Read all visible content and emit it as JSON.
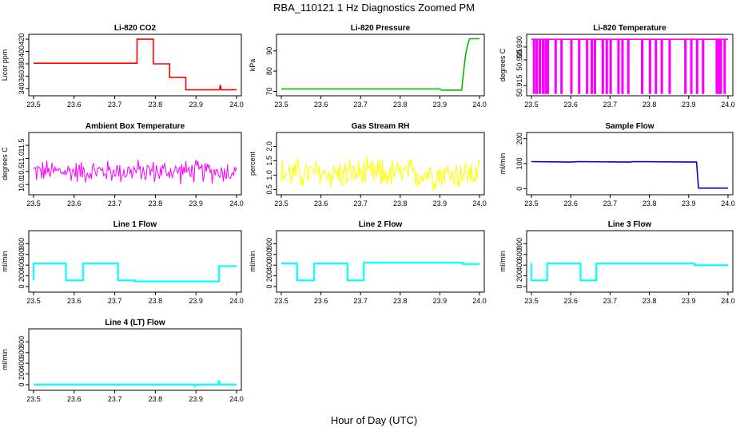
{
  "figure": {
    "title": "RBA_110121  1 Hz Diagnostics Zoomed PM",
    "xlabel": "Hour of Day (UTC)"
  },
  "chart_data": [
    {
      "type": "line",
      "title": "Li-820 CO2",
      "ylabel": "Licor ppm",
      "color": "#ff0000",
      "xlim": [
        23.5,
        24.0
      ],
      "ylim": [
        332,
        424
      ],
      "xticks": [
        "23.5",
        "23.6",
        "23.7",
        "23.8",
        "23.9",
        "24.0"
      ],
      "yticks": [
        340,
        360,
        380,
        400,
        420
      ],
      "x": [
        23.5,
        23.755,
        23.755,
        23.795,
        23.795,
        23.835,
        23.835,
        23.875,
        23.875,
        23.958,
        23.96,
        23.962,
        24.0
      ],
      "y": [
        381,
        381,
        420,
        420,
        380,
        380,
        358,
        358,
        338,
        338,
        346,
        338,
        338
      ]
    },
    {
      "type": "line",
      "title": "Li-820 Pressure",
      "ylabel": "kPa",
      "color": "#00bb00",
      "xlim": [
        23.5,
        24.0
      ],
      "ylim": [
        69,
        97
      ],
      "xticks": [
        "23.5",
        "23.6",
        "23.7",
        "23.8",
        "23.9",
        "24.0"
      ],
      "yticks": [
        70,
        80,
        90
      ],
      "x": [
        23.5,
        23.9,
        23.905,
        23.955,
        23.96,
        23.965,
        23.97,
        23.975,
        24.0
      ],
      "y": [
        71.2,
        71.2,
        70.6,
        70.6,
        80,
        88,
        93,
        96,
        96
      ]
    },
    {
      "type": "line",
      "title": "Li-820 Temperature",
      "ylabel": "degrees C",
      "color": "#ff00ff",
      "xlim": [
        23.5,
        24.0
      ],
      "ylim": [
        50.912,
        50.934
      ],
      "xticks": [
        "23.5",
        "23.6",
        "23.7",
        "23.8",
        "23.9",
        "24.0"
      ],
      "yticks": [
        "50.915",
        "50.925",
        "50.930"
      ],
      "high_value": 50.933,
      "low_value": 50.912,
      "low_at": [
        23.505,
        23.512,
        23.52,
        23.528,
        23.535,
        23.54,
        23.56,
        23.575,
        23.6,
        23.62,
        23.64,
        23.652,
        23.66,
        23.68,
        23.69,
        23.7,
        23.72,
        23.73,
        23.745,
        23.78,
        23.8,
        23.815,
        23.83,
        23.85,
        23.89,
        23.905,
        23.92,
        23.935,
        23.97,
        23.975,
        23.98,
        23.99
      ]
    },
    {
      "type": "line",
      "title": "Ambient Box Temperature",
      "ylabel": "degrees C",
      "color": "#ff00ff",
      "xlim": [
        23.5,
        24.0
      ],
      "ylim": [
        9.7,
        11.9
      ],
      "xticks": [
        "23.5",
        "23.6",
        "23.7",
        "23.8",
        "23.9",
        "24.0"
      ],
      "yticks": [
        "10.0",
        "10.5",
        "11.0",
        "11.5"
      ],
      "noise": {
        "base": 10.5,
        "amp": 0.45,
        "count": 200
      }
    },
    {
      "type": "line",
      "title": "Gas Stream RH",
      "ylabel": "percent",
      "color": "#ffff00",
      "xlim": [
        23.5,
        24.0
      ],
      "ylim": [
        0.4,
        2.4
      ],
      "xticks": [
        "23.5",
        "23.6",
        "23.7",
        "23.8",
        "23.9",
        "24.0"
      ],
      "yticks": [
        "0.5",
        "1.0",
        "1.5",
        "2.0"
      ],
      "noise": {
        "base": 1.05,
        "amp": 0.55,
        "count": 220
      }
    },
    {
      "type": "line",
      "title": "Sample Flow",
      "ylabel": "ml/min",
      "color": "#0000cc",
      "xlim": [
        23.5,
        24.0
      ],
      "ylim": [
        -15,
        215
      ],
      "xticks": [
        "23.5",
        "23.6",
        "23.7",
        "23.8",
        "23.9",
        "24.0"
      ],
      "yticks": [
        0,
        100,
        200
      ],
      "x": [
        23.5,
        23.6,
        23.62,
        23.75,
        23.76,
        23.92,
        23.925,
        24.0
      ],
      "y": [
        108,
        106,
        108,
        106,
        108,
        106,
        2,
        2
      ]
    },
    {
      "type": "line",
      "title": "Line 1 Flow",
      "ylabel": "ml/min",
      "color": "#00ffff",
      "xlim": [
        23.5,
        24.0
      ],
      "ylim": [
        -60,
        1000
      ],
      "xticks": [
        "23.5",
        "23.6",
        "23.7",
        "23.8",
        "23.9",
        "24.0"
      ],
      "yticks": [
        0,
        200,
        400,
        600,
        800
      ],
      "x": [
        23.5,
        23.5,
        23.58,
        23.58,
        23.622,
        23.622,
        23.708,
        23.708,
        23.75,
        23.75,
        23.957,
        23.957,
        24.0
      ],
      "y": [
        120,
        430,
        430,
        115,
        115,
        430,
        430,
        115,
        115,
        95,
        95,
        380,
        380
      ]
    },
    {
      "type": "line",
      "title": "Line 2 Flow",
      "ylabel": "ml/min",
      "color": "#00ffff",
      "xlim": [
        23.5,
        24.0
      ],
      "ylim": [
        -60,
        1000
      ],
      "xticks": [
        "23.5",
        "23.6",
        "23.7",
        "23.8",
        "23.9",
        "24.0"
      ],
      "yticks": [
        0,
        200,
        400,
        600,
        800
      ],
      "x": [
        23.5,
        23.54,
        23.54,
        23.583,
        23.583,
        23.667,
        23.667,
        23.708,
        23.708,
        23.958,
        23.958,
        24.0
      ],
      "y": [
        430,
        430,
        115,
        115,
        430,
        430,
        115,
        115,
        445,
        445,
        420,
        420
      ]
    },
    {
      "type": "line",
      "title": "Line 3 Flow",
      "ylabel": "ml/min",
      "color": "#00ffff",
      "xlim": [
        23.5,
        24.0
      ],
      "ylim": [
        -60,
        1000
      ],
      "xticks": [
        "23.5",
        "23.6",
        "23.7",
        "23.8",
        "23.9",
        "24.0"
      ],
      "yticks": [
        0,
        200,
        400,
        600,
        800
      ],
      "x": [
        23.5,
        23.5,
        23.54,
        23.54,
        23.625,
        23.625,
        23.665,
        23.665,
        23.915,
        23.915,
        24.0
      ],
      "y": [
        440,
        115,
        115,
        430,
        430,
        115,
        115,
        430,
        430,
        400,
        400
      ]
    },
    {
      "type": "line",
      "title": "Line 4 (LT) Flow",
      "ylabel": "ml/min",
      "color": "#00ffff",
      "xlim": [
        23.5,
        24.0
      ],
      "ylim": [
        -60,
        1000
      ],
      "xticks": [
        "23.5",
        "23.6",
        "23.7",
        "23.8",
        "23.9",
        "24.0"
      ],
      "yticks": [
        0,
        200,
        400,
        600,
        800
      ],
      "x": [
        23.5,
        23.895,
        23.897,
        23.9,
        23.955,
        23.957,
        23.959,
        24.0
      ],
      "y": [
        3,
        3,
        -25,
        3,
        3,
        80,
        3,
        3
      ]
    }
  ]
}
